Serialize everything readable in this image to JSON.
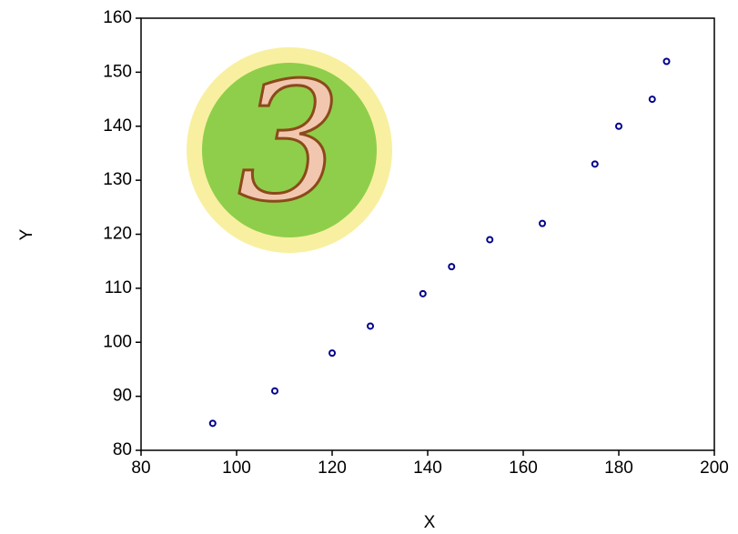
{
  "chart_data": {
    "type": "scatter",
    "x_label": "X",
    "y_label": "Y",
    "annotation": "3",
    "x": [
      95,
      108,
      120,
      128,
      139,
      145,
      153,
      164,
      175,
      180,
      187,
      190
    ],
    "values": [
      85,
      91,
      98,
      103,
      109,
      114,
      119,
      122,
      133,
      140,
      145,
      152
    ],
    "color": "#00008b",
    "xlim": [
      80,
      200
    ],
    "xticks": [
      80,
      100,
      120,
      140,
      160,
      180,
      200
    ],
    "ylim": [
      80,
      160
    ],
    "yticks": [
      80,
      90,
      100,
      110,
      120,
      130,
      140,
      150,
      160
    ],
    "grid": false
  }
}
